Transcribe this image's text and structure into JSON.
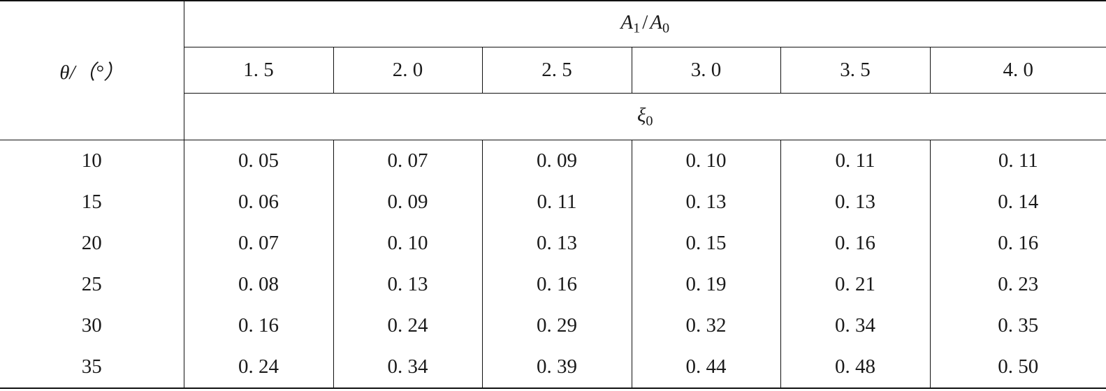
{
  "header": {
    "row_label": "θ/（°）",
    "ratio_label_main": "A",
    "ratio_label_sub1": "1",
    "ratio_label_slash": "/",
    "ratio_label_sub0": "0",
    "coef_label_main": "ξ",
    "coef_label_sub": "0",
    "ratios": [
      "1. 5",
      "2. 0",
      "2. 5",
      "3. 0",
      "3. 5",
      "4. 0"
    ]
  },
  "rows": [
    {
      "theta": "10",
      "values": [
        "0. 05",
        "0. 07",
        "0. 09",
        "0. 10",
        "0. 11",
        "0. 11"
      ]
    },
    {
      "theta": "15",
      "values": [
        "0. 06",
        "0. 09",
        "0. 11",
        "0. 13",
        "0. 13",
        "0. 14"
      ]
    },
    {
      "theta": "20",
      "values": [
        "0. 07",
        "0. 10",
        "0. 13",
        "0. 15",
        "0. 16",
        "0. 16"
      ]
    },
    {
      "theta": "25",
      "values": [
        "0. 08",
        "0. 13",
        "0. 16",
        "0. 19",
        "0. 21",
        "0. 23"
      ]
    },
    {
      "theta": "30",
      "values": [
        "0. 16",
        "0. 24",
        "0. 29",
        "0. 32",
        "0. 34",
        "0. 35"
      ]
    },
    {
      "theta": "35",
      "values": [
        "0. 24",
        "0. 34",
        "0. 39",
        "0. 44",
        "0. 48",
        "0. 50"
      ]
    }
  ]
}
